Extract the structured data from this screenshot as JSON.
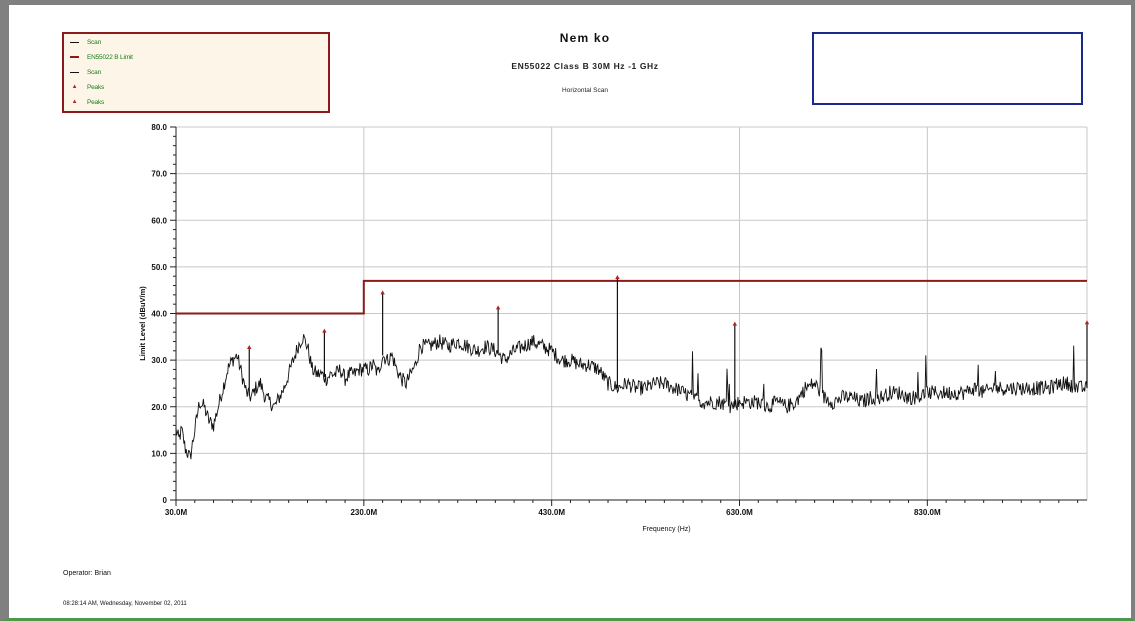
{
  "legend": {
    "items": [
      {
        "label": "Scan",
        "kind": "line",
        "color": "#111111"
      },
      {
        "label": "EN55022 B Limit",
        "kind": "line",
        "color": "#8b1a1a"
      },
      {
        "label": "Scan",
        "kind": "line",
        "color": "#111111"
      },
      {
        "label": "Peaks",
        "kind": "marker",
        "color": "#b22222"
      },
      {
        "label": "Peaks",
        "kind": "marker",
        "color": "#b22222"
      }
    ]
  },
  "header": {
    "title": "Nem ko",
    "subtitle": "EN55022 Class B 30M Hz -1 GHz",
    "scan_label": "Horizontal Scan"
  },
  "footer": {
    "operator": "Operator: Brian",
    "timestamp": "08:28:14 AM, Wednesday, November 02, 2011"
  },
  "chart_data": {
    "type": "line",
    "title": "",
    "xlabel": "Frequency (Hz)",
    "ylabel": "Limit Level (dBuV/m)",
    "xlim": [
      30,
      1000
    ],
    "ylim": [
      0,
      80
    ],
    "x_ticks": [
      30,
      230,
      430,
      630,
      830
    ],
    "x_tick_labels": [
      "30.0M",
      "230.0M",
      "430.0M",
      "630.0M",
      "830.0M"
    ],
    "y_ticks": [
      0,
      10,
      20,
      30,
      40,
      50,
      60,
      70,
      80
    ],
    "y_tick_labels": [
      "0",
      "10.0",
      "20.0",
      "30.0",
      "40.0",
      "50.0",
      "60.0",
      "70.0",
      "80.0"
    ],
    "grid": true,
    "colors": {
      "scan": "#111111",
      "limit": "#8b1a1a",
      "peak": "#b22222",
      "grid": "#c8c8c8"
    },
    "series": [
      {
        "name": "EN55022 B Limit",
        "x": [
          30,
          230,
          230,
          1000
        ],
        "values": [
          40,
          40,
          47,
          47
        ]
      },
      {
        "name": "Scan",
        "x": [
          30,
          33,
          36,
          40,
          45,
          50,
          55,
          60,
          65,
          70,
          75,
          80,
          85,
          90,
          95,
          100,
          105,
          110,
          115,
          120,
          125,
          130,
          135,
          140,
          145,
          150,
          155,
          160,
          165,
          170,
          175,
          180,
          185,
          190,
          195,
          200,
          205,
          210,
          215,
          220,
          225,
          230,
          235,
          240,
          245,
          250,
          255,
          260,
          265,
          270,
          275,
          280,
          285,
          290,
          300,
          310,
          320,
          330,
          340,
          350,
          360,
          370,
          380,
          390,
          400,
          410,
          420,
          430,
          440,
          450,
          460,
          470,
          480,
          490,
          500,
          510,
          520,
          530,
          540,
          550,
          560,
          570,
          580,
          590,
          600,
          610,
          620,
          630,
          640,
          650,
          660,
          670,
          680,
          690,
          700,
          710,
          720,
          730,
          740,
          750,
          760,
          770,
          780,
          790,
          800,
          810,
          820,
          830,
          840,
          850,
          860,
          870,
          880,
          890,
          900,
          910,
          920,
          930,
          940,
          950,
          960,
          970,
          980,
          990,
          1000
        ],
        "values": [
          15,
          13,
          15,
          11,
          9,
          15,
          21,
          20,
          17,
          16,
          20,
          24,
          28,
          30,
          31,
          27,
          23,
          22,
          24,
          25,
          22,
          21,
          20,
          22,
          24,
          27,
          30,
          33,
          35,
          33,
          28,
          27,
          27,
          26,
          27,
          27,
          28,
          26,
          27,
          27,
          28,
          28,
          28,
          29,
          27,
          31,
          30,
          31,
          28,
          26,
          25,
          27,
          29,
          33,
          33,
          34,
          33,
          34,
          33,
          32,
          33,
          32,
          30,
          32,
          33,
          34,
          33,
          32,
          30,
          30,
          29,
          29,
          28,
          25,
          24,
          25,
          24,
          24,
          25,
          25,
          24,
          23,
          22,
          21,
          21,
          21,
          20,
          21,
          21,
          21,
          20,
          21,
          20,
          21,
          24,
          25,
          22,
          21,
          22,
          22,
          21,
          22,
          22,
          23,
          23,
          22,
          22,
          23,
          23,
          23,
          23,
          23,
          24,
          23,
          24,
          24,
          24,
          24,
          24,
          24,
          24,
          25,
          25,
          24,
          24
        ]
      }
    ],
    "peaks": [
      {
        "x": 108,
        "y": 32.5
      },
      {
        "x": 188,
        "y": 36
      },
      {
        "x": 250,
        "y": 44.2
      },
      {
        "x": 373,
        "y": 41
      },
      {
        "x": 500,
        "y": 47.5
      },
      {
        "x": 625,
        "y": 37.5
      },
      {
        "x": 1000,
        "y": 37.8
      }
    ]
  }
}
